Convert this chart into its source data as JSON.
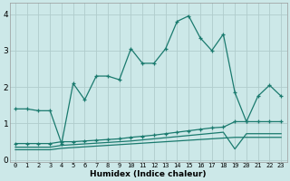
{
  "xlabel": "Humidex (Indice chaleur)",
  "bg_color": "#cce8e8",
  "grid_color": "#b0cccc",
  "line_color": "#1a7a6e",
  "x_values": [
    0,
    1,
    2,
    3,
    4,
    5,
    6,
    7,
    8,
    9,
    10,
    11,
    12,
    13,
    14,
    15,
    16,
    17,
    18,
    19,
    20,
    21,
    22,
    23
  ],
  "line1": [
    1.4,
    1.4,
    1.35,
    1.35,
    0.45,
    2.1,
    1.65,
    2.3,
    2.3,
    2.2,
    3.05,
    2.65,
    2.65,
    3.05,
    3.8,
    3.95,
    3.35,
    3.0,
    3.45,
    1.85,
    1.05,
    1.75,
    2.05,
    1.75
  ],
  "line2": [
    0.45,
    0.45,
    0.45,
    0.45,
    0.5,
    0.5,
    0.52,
    0.54,
    0.56,
    0.58,
    0.62,
    0.65,
    0.68,
    0.72,
    0.76,
    0.8,
    0.84,
    0.88,
    0.9,
    1.05,
    1.05,
    1.05,
    1.05,
    1.05
  ],
  "line3": [
    0.35,
    0.35,
    0.35,
    0.35,
    0.4,
    0.42,
    0.44,
    0.46,
    0.48,
    0.5,
    0.52,
    0.55,
    0.58,
    0.61,
    0.64,
    0.67,
    0.7,
    0.73,
    0.76,
    0.3,
    0.72,
    0.72,
    0.72,
    0.72
  ],
  "line4": [
    0.28,
    0.28,
    0.28,
    0.28,
    0.32,
    0.34,
    0.36,
    0.38,
    0.4,
    0.42,
    0.44,
    0.46,
    0.48,
    0.5,
    0.52,
    0.54,
    0.56,
    0.58,
    0.6,
    0.62,
    0.62,
    0.62,
    0.62,
    0.62
  ],
  "ylim": [
    -0.05,
    4.3
  ],
  "xlim": [
    -0.5,
    23.5
  ],
  "yticks": [
    0,
    1,
    2,
    3,
    4
  ],
  "xticks": [
    0,
    1,
    2,
    3,
    4,
    5,
    6,
    7,
    8,
    9,
    10,
    11,
    12,
    13,
    14,
    15,
    16,
    17,
    18,
    19,
    20,
    21,
    22,
    23
  ],
  "xlabel_fontsize": 6.5,
  "ytick_fontsize": 6.5,
  "xtick_fontsize": 5.0
}
